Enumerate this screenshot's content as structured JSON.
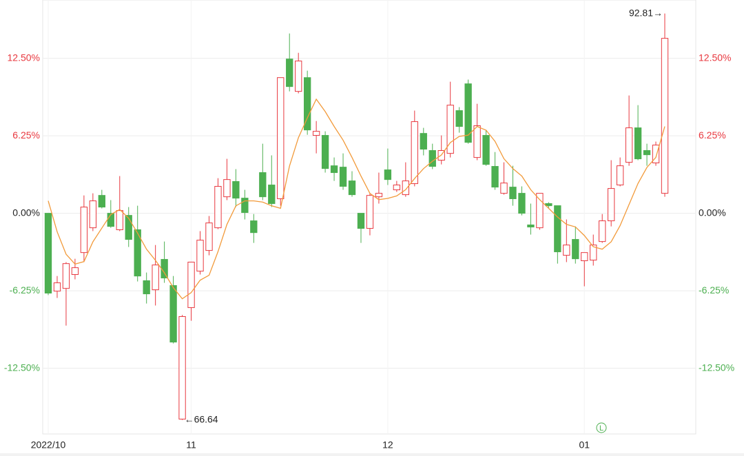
{
  "chart_data": {
    "type": "candlestick",
    "categories": [
      "2022/10",
      null,
      null,
      null,
      null,
      null,
      null,
      null,
      null,
      null,
      null,
      null,
      null,
      null,
      null,
      null,
      "11",
      null,
      null,
      null,
      null,
      null,
      null,
      null,
      null,
      null,
      null,
      null,
      null,
      null,
      null,
      null,
      null,
      null,
      null,
      null,
      null,
      null,
      "12",
      null,
      null,
      null,
      null,
      null,
      null,
      null,
      null,
      null,
      null,
      null,
      null,
      null,
      null,
      null,
      null,
      null,
      null,
      null,
      null,
      null,
      "01",
      null,
      null,
      null,
      null,
      null,
      null,
      null,
      null,
      null
    ],
    "open": [
      0,
      -6.28,
      -6.06,
      -4.94,
      -3.17,
      -1.17,
      1.44,
      0,
      -1.33,
      -0.17,
      -1.33,
      -5.44,
      -6.17,
      -3.72,
      -5.83,
      -16.6,
      -7.61,
      -4.67,
      -3.0,
      -1.17,
      1.33,
      2.56,
      1.22,
      -0.61,
      3.28,
      2.28,
      1.17,
      12.44,
      9.83,
      10.94,
      6.28,
      6.28,
      3.83,
      3.72,
      2.61,
      0,
      -1.22,
      1.33,
      3.5,
      1.89,
      1.5,
      2.39,
      6.44,
      5.06,
      4.28,
      4.83,
      8.28,
      10.44,
      4.5,
      6.28,
      3.78,
      1.61,
      2.11,
      1.61,
      -0.94,
      -1.17,
      0.78,
      0.61,
      -3.39,
      -2.11,
      -3.83,
      -3.78,
      -2.28,
      -0.61,
      2.28,
      4.11,
      6.89,
      5.06,
      4.06,
      1.61
    ],
    "high": [
      0,
      -5.06,
      -3.94,
      -3.67,
      1.44,
      1.61,
      1.89,
      1.06,
      3.0,
      0.5,
      0.61,
      -4.78,
      -2.56,
      -2.28,
      -5.06,
      -8.2,
      -3.94,
      -1.44,
      -0.22,
      2.83,
      4.39,
      3.56,
      1.89,
      -0.06,
      5.61,
      4.67,
      10.94,
      14.5,
      12.94,
      11.5,
      7.44,
      6.61,
      4.5,
      4.83,
      3.39,
      0,
      1.61,
      3.28,
      5.22,
      2.61,
      4.11,
      8.28,
      6.89,
      5.61,
      6.28,
      10.61,
      8.56,
      10.78,
      8.83,
      6.72,
      4.94,
      4.11,
      3.83,
      2.17,
      0.78,
      1.61,
      0.89,
      0.61,
      -0.5,
      -1.06,
      -3.17,
      -1.72,
      -0.06,
      4.28,
      4.5,
      9.5,
      8.72,
      5.61,
      5.78,
      16.11
    ],
    "low": [
      -6.6,
      -6.83,
      -9.06,
      -5.33,
      -3.94,
      -1.44,
      0.39,
      -1.17,
      -1.44,
      -2.72,
      -5.5,
      -7.28,
      -7.44,
      -5.61,
      -10.5,
      -16.67,
      -8.67,
      -4.94,
      -3.39,
      -1.28,
      1.06,
      0.5,
      -0.5,
      -2.39,
      1.06,
      0.5,
      0.61,
      9.83,
      9.67,
      6.33,
      4.83,
      3.28,
      2.61,
      1.89,
      1.33,
      -2.39,
      -1.78,
      0.78,
      2.28,
      1.72,
      1.33,
      2.17,
      4.67,
      3.56,
      3.94,
      4.5,
      6.5,
      5.61,
      4.28,
      3.83,
      1.89,
      1.5,
      0.61,
      -0.17,
      -1.72,
      -1.33,
      0.39,
      -4.06,
      -3.94,
      -4.06,
      -5.89,
      -4.22,
      -2.39,
      -1.06,
      2.17,
      3.83,
      4.28,
      3.83,
      3.83,
      1.33
    ],
    "close": [
      -6.44,
      -5.61,
      -4.06,
      -4.39,
      0.5,
      1.0,
      0.5,
      -1.06,
      0.22,
      -2.11,
      -5.06,
      -6.5,
      -4.17,
      -5.22,
      -10.39,
      -8.33,
      -3.94,
      -2.17,
      -0.78,
      2.17,
      2.72,
      1.22,
      0.06,
      -1.56,
      1.33,
      0.78,
      10.94,
      10.22,
      12.28,
      6.72,
      6.61,
      3.61,
      3.28,
      2.17,
      1.5,
      -1.22,
      1.44,
      1.61,
      2.72,
      2.28,
      2.61,
      7.39,
      5.17,
      3.78,
      5.06,
      8.72,
      7.0,
      5.72,
      7.06,
      3.94,
      2.11,
      2.44,
      1.17,
      0,
      -1.11,
      1.61,
      0.61,
      -3.11,
      -2.56,
      -3.67,
      -3.17,
      -2.56,
      -0.61,
      2.0,
      3.83,
      6.89,
      4.39,
      4.72,
      5.5,
      14.11
    ],
    "ma": [
      1.0,
      -1.5,
      -3.3,
      -4.1,
      -3.9,
      -2.3,
      -1.2,
      -0.1,
      0.3,
      -0.4,
      -1.6,
      -2.9,
      -3.8,
      -4.8,
      -6.0,
      -6.9,
      -6.4,
      -5.4,
      -5.0,
      -3.1,
      -0.9,
      0.6,
      1.0,
      1.0,
      0.9,
      0.6,
      0.4,
      3.8,
      6.1,
      7.7,
      9.2,
      8.2,
      7.0,
      5.9,
      4.5,
      3.0,
      1.6,
      1.1,
      1.2,
      1.4,
      1.9,
      2.8,
      3.6,
      4.2,
      4.7,
      5.7,
      6.2,
      6.3,
      7.0,
      6.7,
      5.8,
      4.4,
      3.6,
      3.0,
      1.9,
      1.1,
      0.4,
      -0.3,
      -0.9,
      -1.1,
      -1.8,
      -2.7,
      -2.9,
      -2.3,
      -1.0,
      0.7,
      2.4,
      3.7,
      4.5,
      7.0
    ],
    "up_color": "#e8373e",
    "down_color": "#4caf50",
    "ma_color": "#f29a3a",
    "zero_label_color": "#222222",
    "ylim": [
      -17.8,
      17.2
    ],
    "yticks": [
      {
        "value": -12.5,
        "label": "-12.50%"
      },
      {
        "value": -6.25,
        "label": "-6.25%"
      },
      {
        "value": 0,
        "label": "0.00%"
      },
      {
        "value": 6.25,
        "label": "6.25%"
      },
      {
        "value": 12.5,
        "label": "12.50%"
      }
    ],
    "grid": true,
    "max_annotation": "92.81→",
    "min_annotation": "←66.64",
    "badge": "L"
  }
}
